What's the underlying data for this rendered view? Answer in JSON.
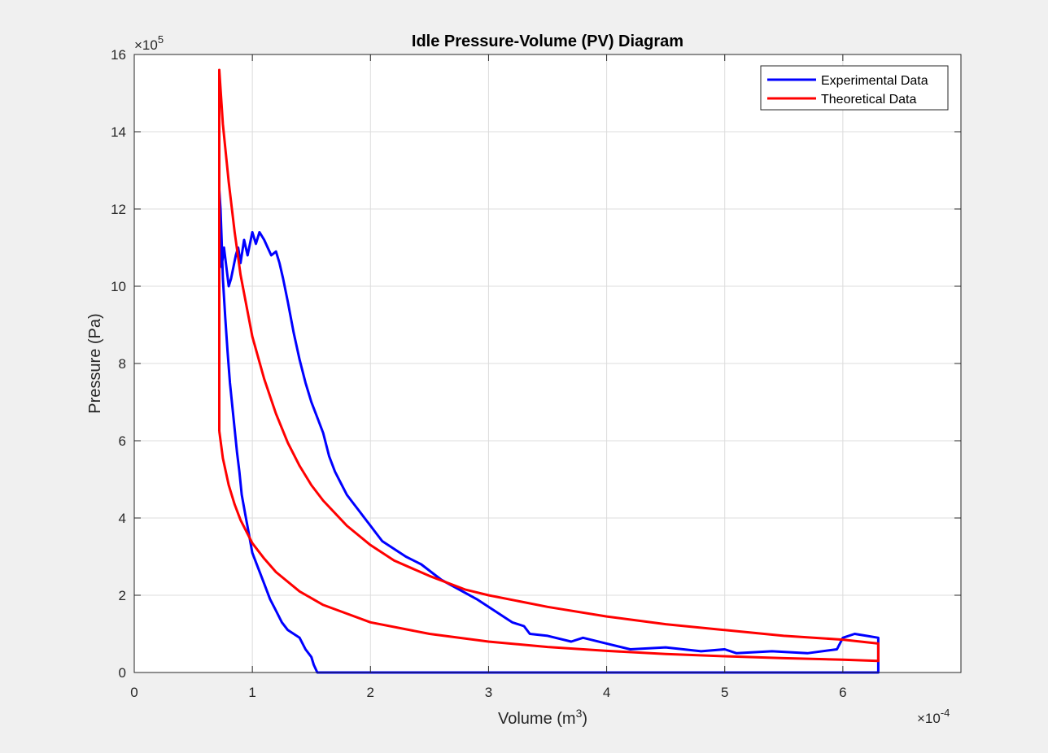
{
  "chart_data": {
    "type": "line",
    "title": "Idle Pressure-Volume (PV) Diagram",
    "xlabel_main": "Volume (m",
    "xlabel_sup": "3",
    "xlabel_close": ")",
    "ylabel": "Pressure (Pa)",
    "x_exponent_base": "×10",
    "x_exponent": "-4",
    "y_exponent_base": "×10",
    "y_exponent": "5",
    "xlim": [
      0,
      7
    ],
    "ylim": [
      0,
      16
    ],
    "x_ticks": [
      0,
      1,
      2,
      3,
      4,
      5,
      6
    ],
    "x_tick_labels": [
      "0",
      "1",
      "2",
      "3",
      "4",
      "5",
      "6"
    ],
    "y_ticks": [
      0,
      2,
      4,
      6,
      8,
      10,
      12,
      14,
      16
    ],
    "y_tick_labels": [
      "0",
      "2",
      "4",
      "6",
      "8",
      "10",
      "12",
      "14",
      "16"
    ],
    "grid": true,
    "legend_position": "top-right",
    "series": [
      {
        "name": "Experimental Data",
        "color": "#0000ff",
        "x": [
          0.72,
          0.73,
          0.74,
          0.76,
          0.78,
          0.8,
          0.82,
          0.84,
          0.86,
          0.88,
          0.9,
          0.93,
          0.96,
          1.0,
          1.03,
          1.06,
          1.1,
          1.13,
          1.16,
          1.2,
          1.23,
          1.26,
          1.3,
          1.35,
          1.4,
          1.45,
          1.5,
          1.55,
          1.6,
          1.65,
          1.7,
          1.75,
          1.8,
          1.85,
          1.9,
          1.95,
          2.0,
          2.05,
          2.1,
          2.2,
          2.3,
          2.43,
          2.6,
          2.72,
          2.9,
          3.05,
          3.2,
          3.3,
          3.35,
          3.5,
          3.7,
          3.8,
          4.0,
          4.2,
          4.5,
          4.8,
          5.0,
          5.1,
          5.4,
          5.7,
          5.95,
          6.0,
          6.1,
          6.2,
          6.3,
          6.3,
          5.0,
          3.0,
          2.0,
          1.55,
          1.52,
          1.5,
          1.45,
          1.4,
          1.3,
          1.25,
          1.2,
          1.15,
          1.1,
          1.05,
          1.0,
          0.97,
          0.94,
          0.91,
          0.89,
          0.87,
          0.85,
          0.83,
          0.81,
          0.79,
          0.77,
          0.75,
          0.74,
          0.73,
          0.72
        ],
        "y": [
          12.3,
          11.5,
          10.5,
          11.0,
          10.5,
          10.0,
          10.2,
          10.5,
          10.8,
          11.0,
          10.6,
          11.2,
          10.8,
          11.4,
          11.1,
          11.4,
          11.2,
          11.0,
          10.8,
          10.9,
          10.6,
          10.2,
          9.6,
          8.8,
          8.1,
          7.5,
          7.0,
          6.6,
          6.2,
          5.6,
          5.2,
          4.9,
          4.6,
          4.4,
          4.2,
          4.0,
          3.8,
          3.6,
          3.4,
          3.2,
          3.0,
          2.8,
          2.4,
          2.2,
          1.9,
          1.6,
          1.3,
          1.2,
          1.0,
          0.95,
          0.8,
          0.9,
          0.75,
          0.6,
          0.65,
          0.55,
          0.6,
          0.5,
          0.55,
          0.5,
          0.6,
          0.9,
          1.0,
          0.95,
          0.9,
          0.0,
          0.0,
          0.0,
          0.0,
          0.0,
          0.2,
          0.4,
          0.6,
          0.9,
          1.1,
          1.3,
          1.6,
          1.9,
          2.3,
          2.7,
          3.1,
          3.6,
          4.1,
          4.6,
          5.2,
          5.7,
          6.3,
          6.9,
          7.5,
          8.3,
          9.2,
          10.2,
          11.2,
          12.0,
          12.5
        ]
      },
      {
        "name": "Theoretical Data",
        "color": "#ff0000",
        "x": [
          0.72,
          0.72,
          0.75,
          0.8,
          0.85,
          0.9,
          1.0,
          1.1,
          1.2,
          1.3,
          1.4,
          1.5,
          1.6,
          1.8,
          2.0,
          2.2,
          2.5,
          2.8,
          3.0,
          3.5,
          4.0,
          4.5,
          5.0,
          5.5,
          6.0,
          6.3,
          6.3,
          6.0,
          5.5,
          5.0,
          4.5,
          4.0,
          3.5,
          3.0,
          2.5,
          2.0,
          1.6,
          1.4,
          1.2,
          1.1,
          1.0,
          0.9,
          0.85,
          0.8,
          0.75,
          0.72
        ],
        "y": [
          6.25,
          15.6,
          14.2,
          12.7,
          11.4,
          10.3,
          8.7,
          7.6,
          6.7,
          5.95,
          5.35,
          4.85,
          4.45,
          3.8,
          3.3,
          2.9,
          2.5,
          2.15,
          2.0,
          1.7,
          1.45,
          1.25,
          1.1,
          0.95,
          0.85,
          0.75,
          0.3,
          0.33,
          0.37,
          0.42,
          0.48,
          0.56,
          0.66,
          0.8,
          1.0,
          1.3,
          1.75,
          2.1,
          2.6,
          2.95,
          3.35,
          3.95,
          4.35,
          4.85,
          5.55,
          6.25
        ]
      }
    ]
  }
}
